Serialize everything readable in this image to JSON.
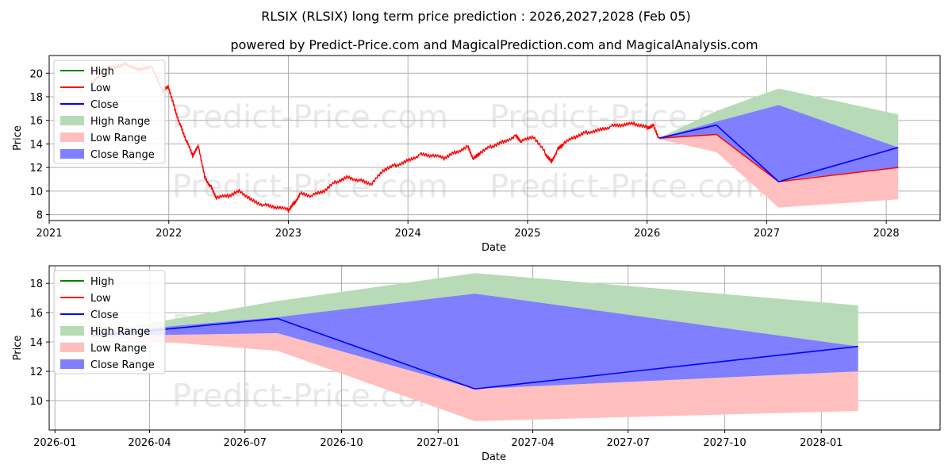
{
  "chart_data": {
    "title": "RLSIX (RLSIX) long term price prediction : 2026,2027,2028 (Feb 05)",
    "subtitle": "powered by Predict-Price.com and MagicalPrediction.com and MagicalAnalysis.com",
    "watermark": "Predict-Price.com",
    "legend": [
      "High",
      "Low",
      "Close",
      "High Range",
      "Low Range",
      "Close Range"
    ],
    "colors": {
      "high": "#008000",
      "low": "#ff0000",
      "close": "#0000ff",
      "high_range": "#b6dbb6",
      "low_range": "#ffbfbf",
      "close_range": "#7f7fff"
    },
    "charts": [
      {
        "type": "line",
        "xlabel": "Date",
        "ylabel": "Price",
        "xlim": [
          2021.0,
          2028.45
        ],
        "ylim": [
          7.5,
          21.5
        ],
        "xticks": [
          2021,
          2022,
          2023,
          2024,
          2025,
          2026,
          2027,
          2028
        ],
        "xtick_labels": [
          "2021",
          "2022",
          "2023",
          "2024",
          "2025",
          "2026",
          "2027",
          "2028"
        ],
        "yticks": [
          8,
          10,
          12,
          14,
          16,
          18,
          20
        ],
        "history_low_x": [
          2021.35,
          2021.45,
          2021.55,
          2021.65,
          2021.75,
          2021.85,
          2021.95,
          2022.0,
          2022.05,
          2022.1,
          2022.15,
          2022.2,
          2022.25,
          2022.3,
          2022.35,
          2022.4,
          2022.5,
          2022.6,
          2022.7,
          2022.8,
          2022.9,
          2023.0,
          2023.05,
          2023.1,
          2023.2,
          2023.3,
          2023.4,
          2023.5,
          2023.6,
          2023.7,
          2023.8,
          2023.9,
          2024.0,
          2024.1,
          2024.2,
          2024.3,
          2024.4,
          2024.5,
          2024.55,
          2024.6,
          2024.7,
          2024.8,
          2024.9,
          2024.95,
          2025.05,
          2025.15,
          2025.2,
          2025.25,
          2025.3,
          2025.4,
          2025.5,
          2025.6,
          2025.7,
          2025.8,
          2025.9,
          2026.0,
          2026.05,
          2026.1
        ],
        "history_low_y": [
          19.0,
          20.2,
          20.5,
          20.8,
          20.3,
          20.6,
          18.5,
          18.8,
          17.0,
          15.5,
          14.2,
          13.0,
          13.8,
          11.2,
          10.4,
          9.4,
          9.6,
          10.0,
          9.2,
          8.8,
          8.6,
          8.4,
          9.0,
          9.8,
          9.6,
          10.0,
          10.8,
          11.2,
          10.9,
          10.6,
          11.8,
          12.2,
          12.6,
          13.1,
          13.0,
          12.8,
          13.3,
          13.8,
          12.7,
          13.2,
          13.8,
          14.2,
          14.7,
          14.2,
          14.6,
          13.2,
          12.5,
          13.5,
          14.0,
          14.6,
          15.0,
          15.2,
          15.5,
          15.6,
          15.7,
          15.4,
          15.6,
          14.5
        ],
        "history_pale_x": [
          2021.35,
          2021.45,
          2021.55,
          2021.65,
          2021.75,
          2021.85,
          2021.95
        ],
        "history_pale_y": [
          19.5,
          20.6,
          20.9,
          20.2,
          20.9,
          20.4,
          19.2
        ],
        "pred_x": [
          2026.1,
          2026.58,
          2027.1,
          2028.1
        ],
        "high_range_upper": [
          14.5,
          16.8,
          18.7,
          16.5
        ],
        "low_range_lower": [
          14.4,
          13.3,
          8.6,
          9.3
        ],
        "close_range_upper": [
          14.5,
          15.9,
          17.3,
          13.7
        ],
        "close_range_lower": [
          14.4,
          14.8,
          10.9,
          12.0
        ],
        "low_line": [
          14.5,
          14.8,
          10.8,
          12.0
        ],
        "close_line": [
          14.5,
          15.6,
          10.8,
          13.7
        ]
      },
      {
        "type": "line",
        "xlabel": "Date",
        "ylabel": "Price",
        "xlim": [
          2025.985,
          2028.31
        ],
        "ylim": [
          8.0,
          19.2
        ],
        "xticks": [
          2026.0,
          2026.247,
          2026.496,
          2026.748,
          2027.0,
          2027.247,
          2027.496,
          2027.748,
          2028.0
        ],
        "xtick_labels": [
          "2026-01",
          "2026-04",
          "2026-07",
          "2026-10",
          "2027-01",
          "2027-04",
          "2027-07",
          "2027-10",
          "2028-01"
        ],
        "yticks": [
          10,
          12,
          14,
          16,
          18
        ],
        "pred_x": [
          2026.096,
          2026.581,
          2027.096,
          2028.096
        ],
        "high_range_upper": [
          14.6,
          16.8,
          18.7,
          16.5
        ],
        "low_range_lower": [
          14.4,
          13.4,
          8.6,
          9.3
        ],
        "close_range_upper": [
          14.6,
          15.7,
          17.3,
          13.7
        ],
        "close_range_lower": [
          14.4,
          14.6,
          10.8,
          12.0
        ],
        "close_line": [
          14.4,
          15.6,
          10.8,
          13.7
        ]
      }
    ]
  }
}
